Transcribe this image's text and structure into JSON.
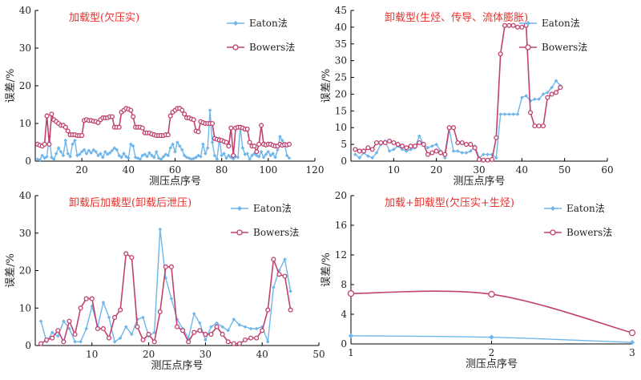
{
  "colors": {
    "eaton": "#6fb6ea",
    "bowers": "#c0406e",
    "title": "#e8302b"
  },
  "chart_data": [
    {
      "type": "line",
      "title": "加载型(欠压实)",
      "xlabel": "测压点序号",
      "ylabel": "误差/%",
      "xlim": [
        0,
        120
      ],
      "ylim": [
        0,
        40
      ],
      "xticks": [
        "20",
        "40",
        "60",
        "80",
        "100",
        "120"
      ],
      "yticks": [
        "0",
        "10",
        "20",
        "30",
        "40"
      ],
      "legend": [
        "Eaton法",
        "Bowers法"
      ],
      "series": [
        {
          "name": "Eaton法",
          "x": [
            1,
            2,
            3,
            4,
            5,
            6,
            7,
            8,
            9,
            10,
            11,
            12,
            13,
            14,
            15,
            16,
            17,
            18,
            19,
            20,
            21,
            22,
            23,
            24,
            25,
            26,
            27,
            28,
            29,
            30,
            31,
            32,
            33,
            34,
            35,
            36,
            37,
            38,
            39,
            40,
            41,
            42,
            43,
            44,
            45,
            46,
            47,
            48,
            49,
            50,
            51,
            52,
            53,
            54,
            55,
            56,
            57,
            58,
            59,
            60,
            61,
            62,
            63,
            64,
            65,
            66,
            67,
            68,
            69,
            70,
            71,
            72,
            73,
            74,
            75,
            76,
            77,
            78,
            79,
            80,
            81,
            82,
            83,
            84,
            85,
            86,
            87,
            88,
            89,
            90,
            91,
            92,
            93,
            94,
            95,
            96,
            97,
            98,
            99,
            100,
            101,
            102,
            103,
            104,
            105,
            106,
            107,
            108,
            109
          ],
          "y": [
            0.5,
            0.3,
            1.5,
            0.8,
            1.2,
            6.5,
            1.0,
            0.5,
            2.0,
            3.5,
            2.5,
            1.5,
            5.5,
            2.0,
            1.2,
            4.5,
            5.5,
            1.5,
            1.8,
            2.5,
            3.0,
            2.0,
            2.8,
            2.2,
            3.0,
            2.5,
            1.5,
            2.0,
            1.0,
            2.5,
            1.8,
            2.2,
            2.8,
            3.5,
            3.0,
            1.5,
            1.0,
            2.0,
            1.2,
            0.8,
            4.5,
            4.0,
            1.0,
            0.8,
            0.5,
            1.5,
            1.8,
            1.2,
            2.2,
            1.5,
            1.0,
            2.5,
            0.8,
            0.5,
            1.2,
            1.8,
            1.5,
            3.5,
            4.5,
            2.5,
            5.0,
            4.0,
            3.0,
            1.5,
            1.0,
            0.8,
            0.5,
            0.7,
            1.0,
            1.5,
            1.2,
            4.5,
            2.0,
            3.5,
            13.5,
            5.0,
            1.5,
            0.5,
            6.0,
            1.5,
            2.0,
            0.8,
            1.5,
            1.0,
            0.6,
            1.2,
            1.0,
            9.0,
            3.5,
            1.8,
            2.0,
            0.5,
            1.5,
            2.0,
            1.5,
            1.2,
            2.5,
            1.0,
            1.8,
            2.5,
            1.5,
            2.0,
            1.0,
            3.0,
            6.5,
            5.5,
            4.5,
            1.5,
            0.8
          ]
        },
        {
          "name": "Bowers法",
          "x": [
            1,
            2,
            3,
            4,
            5,
            6,
            7,
            8,
            9,
            10,
            11,
            12,
            13,
            14,
            15,
            16,
            17,
            18,
            19,
            20,
            21,
            22,
            23,
            24,
            25,
            26,
            27,
            28,
            29,
            30,
            31,
            32,
            33,
            34,
            35,
            36,
            37,
            38,
            39,
            40,
            41,
            42,
            43,
            44,
            45,
            46,
            47,
            48,
            49,
            50,
            51,
            52,
            53,
            54,
            55,
            56,
            57,
            58,
            59,
            60,
            61,
            62,
            63,
            64,
            65,
            66,
            67,
            68,
            69,
            70,
            71,
            72,
            73,
            74,
            75,
            76,
            77,
            78,
            79,
            80,
            81,
            82,
            83,
            84,
            85,
            86,
            87,
            88,
            89,
            90,
            91,
            92,
            93,
            94,
            95,
            96,
            97,
            98,
            99,
            100,
            101,
            102,
            103,
            104,
            105,
            106,
            107,
            108,
            109
          ],
          "y": [
            4.5,
            4.2,
            4.0,
            4.5,
            12.0,
            4.5,
            12.5,
            11.0,
            10.5,
            10.0,
            9.5,
            9.5,
            9.0,
            8.0,
            7.0,
            7.0,
            7.0,
            6.8,
            6.8,
            6.8,
            10.8,
            11.0,
            10.8,
            10.8,
            10.6,
            10.5,
            10.2,
            11.0,
            11.5,
            11.5,
            11.5,
            11.8,
            11.8,
            9.0,
            9.0,
            9.0,
            13.0,
            13.5,
            14.0,
            13.8,
            13.5,
            11.8,
            9.0,
            9.0,
            9.0,
            8.8,
            7.5,
            7.5,
            7.5,
            7.2,
            7.0,
            6.8,
            6.8,
            6.8,
            6.8,
            7.0,
            7.0,
            12.0,
            13.0,
            13.5,
            14.0,
            14.0,
            13.5,
            12.5,
            11.5,
            11.5,
            11.2,
            11.0,
            8.0,
            7.8,
            10.5,
            10.2,
            10.0,
            10.0,
            10.0,
            10.0,
            6.0,
            5.8,
            5.6,
            5.5,
            5.2,
            5.0,
            4.0,
            8.8,
            1.5,
            8.8,
            9.0,
            9.0,
            8.8,
            8.5,
            8.5,
            5.0,
            4.0,
            4.0,
            2.5,
            4.5,
            9.5,
            4.5,
            4.3,
            4.5,
            4.5,
            4.2,
            4.0,
            4.0,
            4.5,
            4.2,
            4.4,
            4.3,
            4.5
          ]
        }
      ]
    },
    {
      "type": "line",
      "title": "卸载型(生烃、传导、流体膨胀)",
      "xlabel": "测压点序号",
      "ylabel": "误差/%",
      "xlim": [
        0,
        60
      ],
      "ylim": [
        0,
        45
      ],
      "xticks": [
        "10",
        "20",
        "30",
        "40",
        "50",
        "60"
      ],
      "yticks": [
        "0",
        "5",
        "10",
        "15",
        "20",
        "25",
        "30",
        "35",
        "40",
        "45"
      ],
      "legend": [
        "Eaton法",
        "Bowers法"
      ],
      "series": [
        {
          "name": "Eaton法",
          "x": [
            1,
            2,
            3,
            4,
            5,
            6,
            7,
            8,
            9,
            10,
            11,
            12,
            13,
            14,
            15,
            16,
            17,
            18,
            19,
            20,
            21,
            22,
            23,
            24,
            25,
            26,
            27,
            28,
            29,
            30,
            31,
            32,
            33,
            34,
            35,
            36,
            37,
            38,
            39,
            40,
            41,
            42,
            43,
            44,
            45,
            46,
            47,
            48,
            49
          ],
          "y": [
            2.0,
            1.0,
            2.5,
            1.5,
            1.0,
            2.5,
            5.0,
            6.0,
            3.0,
            3.5,
            4.5,
            3.5,
            3.0,
            3.5,
            4.0,
            7.5,
            5.0,
            4.0,
            4.5,
            5.0,
            3.0,
            1.0,
            9.5,
            3.0,
            3.0,
            2.5,
            2.5,
            3.0,
            4.5,
            1.0,
            2.0,
            2.0,
            2.0,
            1.0,
            14.0,
            14.0,
            14.0,
            14.0,
            14.0,
            19.0,
            19.5,
            18.0,
            18.5,
            18.5,
            20.0,
            20.5,
            22.0,
            24.0,
            22.5
          ]
        },
        {
          "name": "Bowers法",
          "x": [
            1,
            2,
            3,
            4,
            5,
            6,
            7,
            8,
            9,
            10,
            11,
            12,
            13,
            14,
            15,
            16,
            17,
            18,
            19,
            20,
            21,
            22,
            23,
            24,
            25,
            26,
            27,
            28,
            29,
            30,
            31,
            32,
            33,
            34,
            35,
            36,
            37,
            38,
            39,
            40,
            41,
            42,
            43,
            44,
            45,
            46,
            47,
            48,
            49
          ],
          "y": [
            3.5,
            3.0,
            3.0,
            4.0,
            3.5,
            5.5,
            5.5,
            5.5,
            6.0,
            5.5,
            5.0,
            4.5,
            4.0,
            4.5,
            4.5,
            5.5,
            5.0,
            2.0,
            2.5,
            3.0,
            2.5,
            2.0,
            10.0,
            10.0,
            5.5,
            5.5,
            5.0,
            5.0,
            4.0,
            0.5,
            0.3,
            0.3,
            0.5,
            7.0,
            32.0,
            40.5,
            40.5,
            40.5,
            40.0,
            40.0,
            40.5,
            14.5,
            10.5,
            10.5,
            10.5,
            19.0,
            20.0,
            20.5,
            22.0
          ]
        }
      ]
    },
    {
      "type": "line",
      "title": "卸载后加载型(卸载后泄压)",
      "xlabel": "测压点序号",
      "ylabel": "误差/%",
      "xlim": [
        0,
        50
      ],
      "ylim": [
        0,
        40
      ],
      "xticks": [
        "10",
        "20",
        "30",
        "40",
        "50"
      ],
      "yticks": [
        "0",
        "10",
        "20",
        "30",
        "40"
      ],
      "legend": [
        "Eaton法",
        "Bowers法"
      ],
      "series": [
        {
          "name": "Eaton法",
          "x": [
            1,
            2,
            3,
            4,
            5,
            6,
            7,
            8,
            9,
            10,
            11,
            12,
            13,
            14,
            15,
            16,
            17,
            18,
            19,
            20,
            21,
            22,
            23,
            24,
            25,
            26,
            27,
            28,
            29,
            30,
            31,
            32,
            33,
            34,
            35,
            36,
            37,
            38,
            39,
            40,
            41,
            42,
            43,
            44,
            45
          ],
          "y": [
            6.5,
            1.0,
            3.5,
            2.5,
            6.5,
            4.5,
            1.0,
            1.0,
            4.5,
            10.5,
            5.0,
            11.5,
            7.5,
            1.0,
            2.0,
            5.0,
            3.0,
            7.0,
            7.5,
            2.5,
            3.5,
            31.0,
            18.0,
            12.5,
            7.0,
            4.5,
            2.0,
            8.5,
            6.0,
            1.5,
            5.0,
            6.0,
            5.0,
            4.0,
            7.0,
            5.5,
            5.0,
            4.5,
            4.5,
            5.0,
            1.0,
            15.5,
            20.0,
            23.0,
            14.5
          ]
        },
        {
          "name": "Bowers法",
          "x": [
            1,
            2,
            3,
            4,
            5,
            6,
            7,
            8,
            9,
            10,
            11,
            12,
            13,
            14,
            15,
            16,
            17,
            18,
            19,
            20,
            21,
            22,
            23,
            24,
            25,
            26,
            27,
            28,
            29,
            30,
            31,
            32,
            33,
            34,
            35,
            36,
            37,
            38,
            39,
            40,
            41,
            42,
            43,
            44,
            45
          ],
          "y": [
            0.5,
            1.5,
            2.0,
            4.0,
            1.0,
            6.5,
            3.0,
            10.0,
            12.5,
            12.5,
            4.5,
            4.5,
            2.0,
            7.5,
            9.5,
            24.5,
            23.5,
            5.0,
            1.5,
            3.0,
            1.0,
            9.0,
            21.0,
            21.0,
            5.0,
            4.0,
            1.0,
            3.5,
            4.0,
            3.0,
            3.0,
            5.0,
            3.0,
            1.0,
            0.5,
            0.5,
            1.5,
            2.0,
            2.0,
            4.0,
            9.5,
            23.0,
            19.0,
            18.5,
            9.5
          ]
        }
      ]
    },
    {
      "type": "line",
      "title": "加载+卸载型(欠压实+生烃)",
      "xlabel": "测压点序号",
      "ylabel": "误差/%",
      "xlim": [
        1,
        3
      ],
      "ylim": [
        0,
        20
      ],
      "xticks": [
        "1",
        "2",
        "3"
      ],
      "yticks": [
        "0",
        "4",
        "8",
        "12",
        "16",
        "20"
      ],
      "legend": [
        "Eaton法",
        "Bowers法"
      ],
      "series": [
        {
          "name": "Eaton法",
          "x": [
            1,
            2,
            3
          ],
          "y": [
            1.1,
            0.9,
            0.2
          ]
        },
        {
          "name": "Bowers法",
          "x": [
            1,
            2,
            3
          ],
          "y": [
            6.8,
            6.7,
            1.5
          ]
        }
      ]
    }
  ]
}
